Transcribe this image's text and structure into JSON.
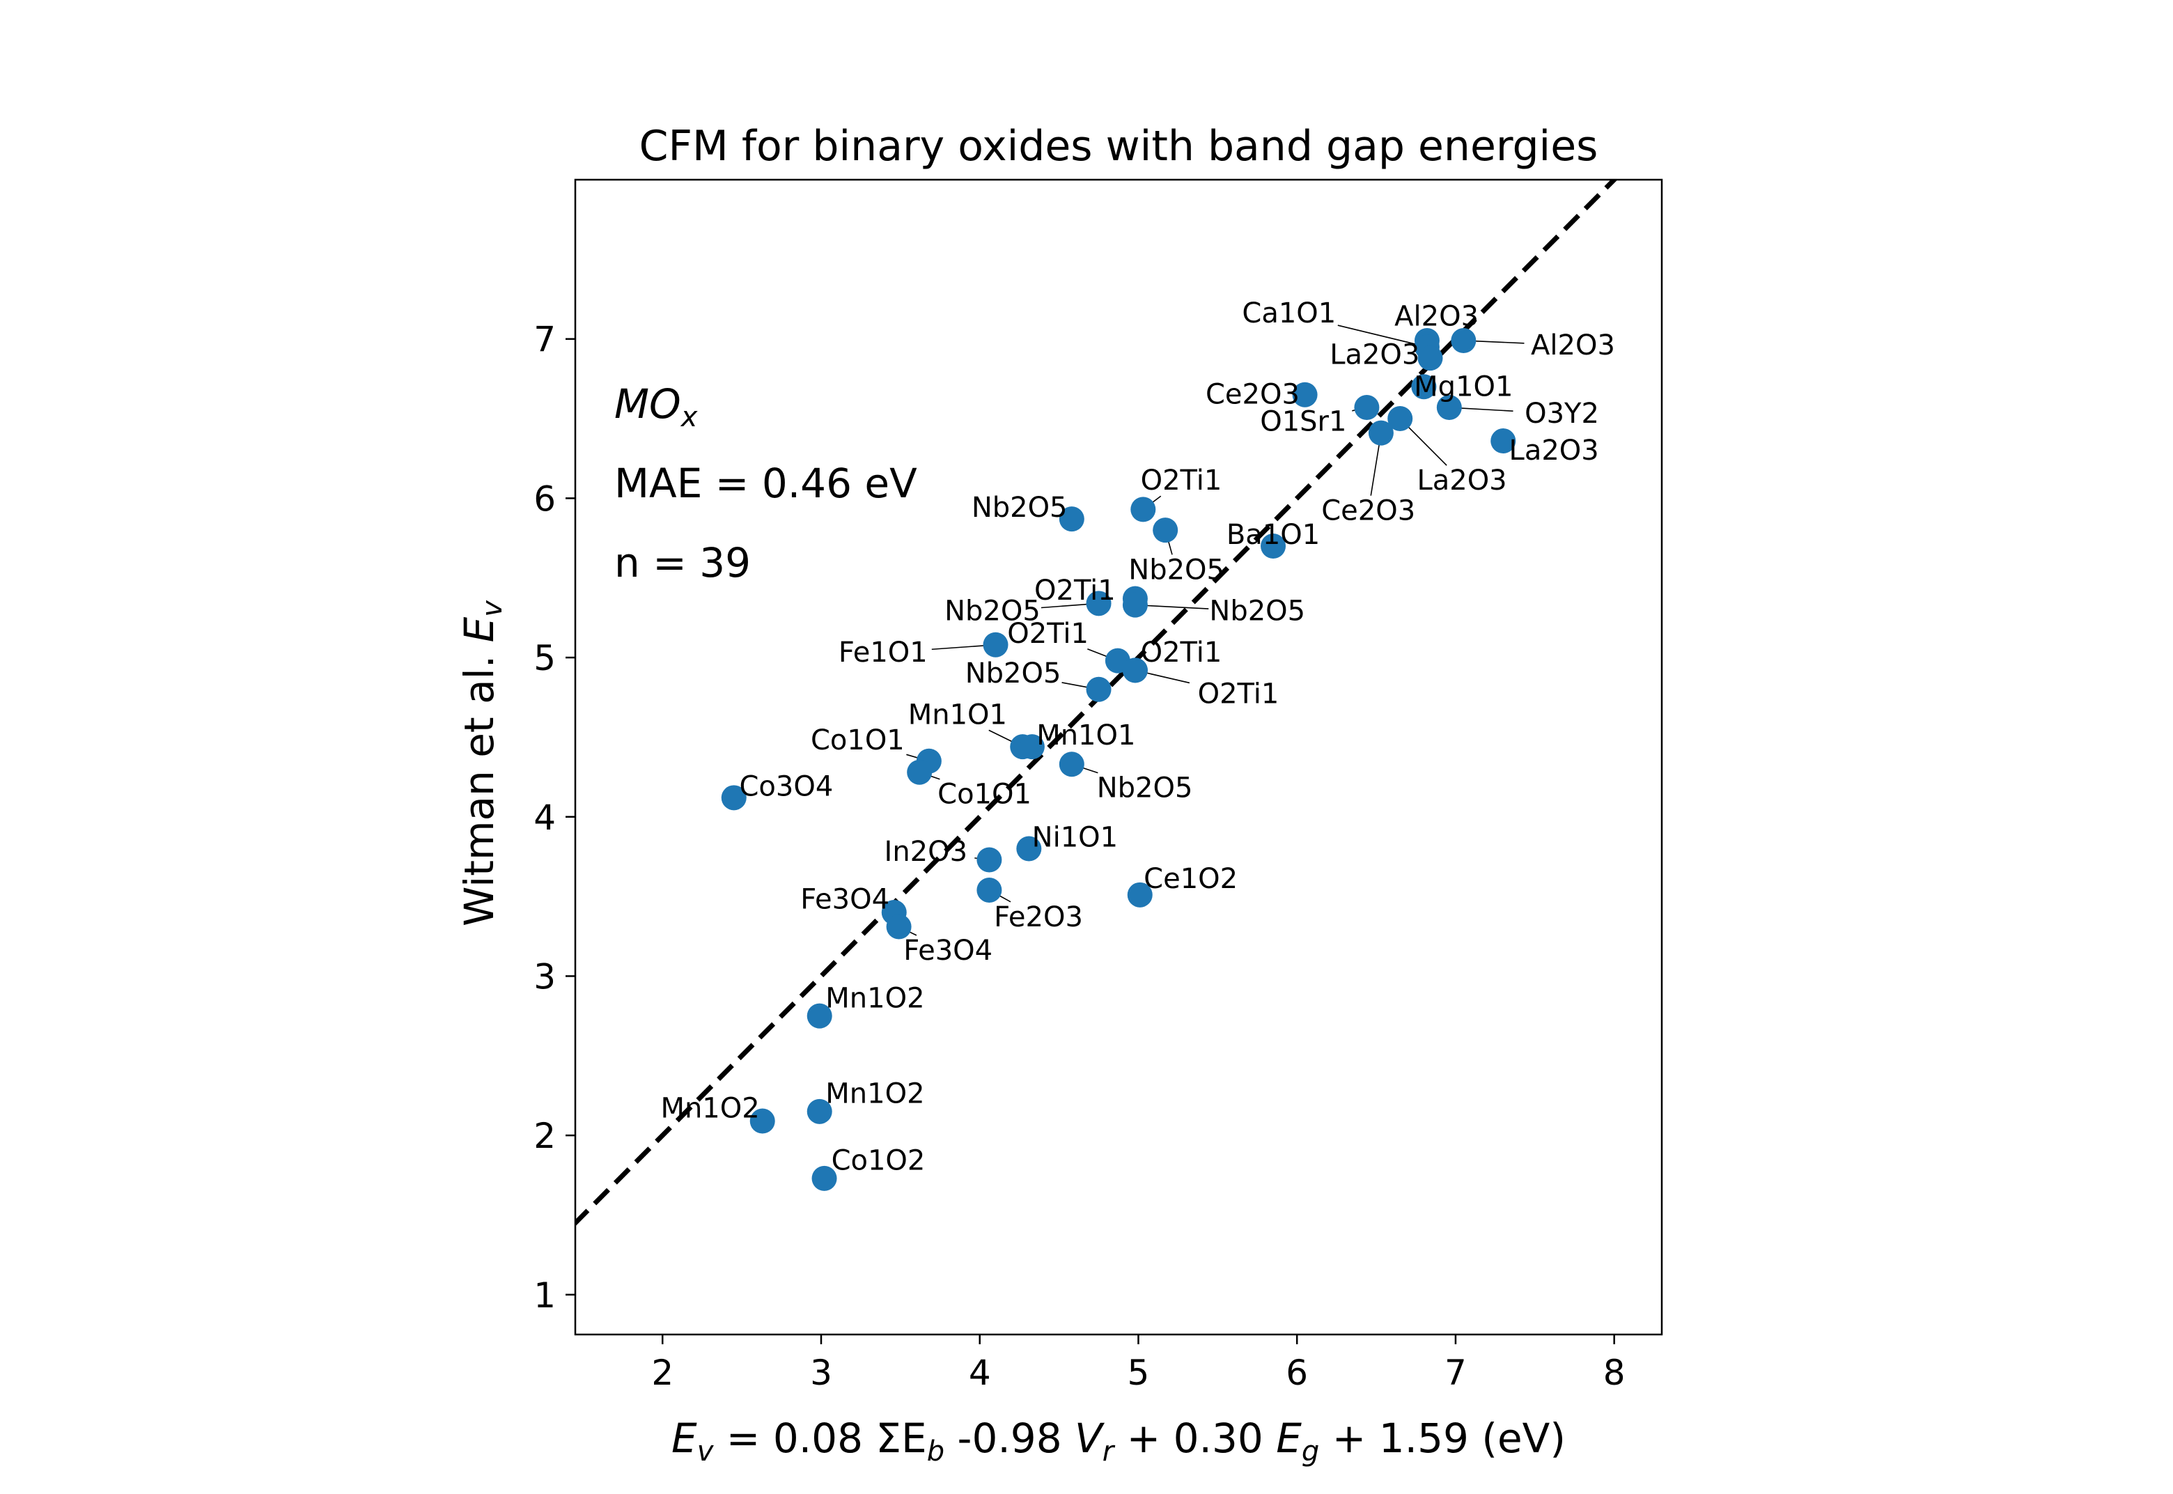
{
  "chart_data": {
    "type": "scatter",
    "title": "CFM for binary oxides with band gap energies",
    "xlabel": {
      "parts": [
        {
          "t": "E",
          "i": true
        },
        {
          "t": "v",
          "sub": true
        },
        {
          "t": " = 0.08 ΣE"
        },
        {
          "t": "b",
          "sub": true
        },
        {
          "t": " -0.98 "
        },
        {
          "t": "V",
          "i": true
        },
        {
          "t": "r",
          "sub": true
        },
        {
          "t": " + 0.30 "
        },
        {
          "t": "E",
          "i": true
        },
        {
          "t": "g",
          "sub": true
        },
        {
          "t": " + 1.59 (eV)"
        }
      ]
    },
    "ylabel": {
      "parts": [
        {
          "t": "Witman et al. "
        },
        {
          "t": "E",
          "i": true
        },
        {
          "t": "v",
          "sub": true
        }
      ]
    },
    "xlim": [
      1.45,
      8.3
    ],
    "ylim": [
      0.75,
      8.0
    ],
    "xticks": [
      "2",
      "3",
      "4",
      "5",
      "6",
      "7",
      "8"
    ],
    "yticks": [
      "1",
      "2",
      "3",
      "4",
      "5",
      "6",
      "7"
    ],
    "annotations": {
      "formula_main": "MO",
      "formula_sub": "x",
      "mae": "MAE = 0.46 eV",
      "n": "n = 39"
    },
    "parity_line": {
      "style": "dashed",
      "color": "#000000"
    },
    "point_color": "#1f77b4",
    "points": [
      {
        "label": "Al2O3",
        "x": 6.82,
        "y": 6.99,
        "lx": 6.88,
        "ly": 7.14
      },
      {
        "label": "Al2O3",
        "x": 7.05,
        "y": 6.99,
        "lx": 7.74,
        "ly": 6.96
      },
      {
        "label": "Ca1O1",
        "x": 6.82,
        "y": 6.95,
        "lx": 5.95,
        "ly": 7.16
      },
      {
        "label": "La2O3",
        "x": 6.84,
        "y": 6.88,
        "lx": 6.49,
        "ly": 6.9
      },
      {
        "label": "Mg1O1",
        "x": 6.8,
        "y": 6.7,
        "lx": 7.05,
        "ly": 6.7
      },
      {
        "label": "Ce2O3",
        "x": 6.05,
        "y": 6.65,
        "lx": 5.72,
        "ly": 6.65
      },
      {
        "label": "O1Sr1",
        "x": 6.44,
        "y": 6.57,
        "lx": 6.04,
        "ly": 6.48
      },
      {
        "label": "O3Y2",
        "x": 6.96,
        "y": 6.57,
        "lx": 7.67,
        "ly": 6.53
      },
      {
        "label": "La2O3",
        "x": 6.65,
        "y": 6.5,
        "lx": 7.04,
        "ly": 6.11
      },
      {
        "label": "Ce2O3",
        "x": 6.53,
        "y": 6.41,
        "lx": 6.45,
        "ly": 5.92
      },
      {
        "label": "La2O3",
        "x": 7.3,
        "y": 6.36,
        "lx": 7.62,
        "ly": 6.3
      },
      {
        "label": "O2Ti1",
        "x": 5.03,
        "y": 5.93,
        "lx": 5.27,
        "ly": 6.11
      },
      {
        "label": "Nb2O5",
        "x": 4.58,
        "y": 5.87,
        "lx": 4.25,
        "ly": 5.94
      },
      {
        "label": "Nb2O5",
        "x": 5.17,
        "y": 5.8,
        "lx": 5.24,
        "ly": 5.55
      },
      {
        "label": "Ba1O1",
        "x": 5.85,
        "y": 5.7,
        "lx": 5.85,
        "ly": 5.77
      },
      {
        "label": "O2Ti1",
        "x": 4.98,
        "y": 5.37,
        "lx": 4.6,
        "ly": 5.42
      },
      {
        "label": "Nb2O5",
        "x": 4.75,
        "y": 5.34,
        "lx": 4.08,
        "ly": 5.29
      },
      {
        "label": "Nb2O5",
        "x": 4.98,
        "y": 5.33,
        "lx": 5.75,
        "ly": 5.29
      },
      {
        "label": "O2Ti1",
        "x": 4.87,
        "y": 4.98,
        "lx": 4.43,
        "ly": 5.15
      },
      {
        "label": "O2Ti1",
        "x": 4.98,
        "y": 4.92,
        "lx": 5.27,
        "ly": 5.03
      },
      {
        "label": "O2Ti1",
        "x": 4.98,
        "y": 4.92,
        "lx": 5.63,
        "ly": 4.77
      },
      {
        "label": "Nb2O5",
        "x": 4.75,
        "y": 4.8,
        "lx": 4.21,
        "ly": 4.9
      },
      {
        "label": "Fe1O1",
        "x": 4.1,
        "y": 5.08,
        "lx": 3.39,
        "ly": 5.03
      },
      {
        "label": "Mn1O1",
        "x": 4.27,
        "y": 4.44,
        "lx": 3.86,
        "ly": 4.64
      },
      {
        "label": "Mn1O1",
        "x": 4.33,
        "y": 4.44,
        "lx": 4.67,
        "ly": 4.51
      },
      {
        "label": "Co1O1",
        "x": 3.68,
        "y": 4.35,
        "lx": 3.23,
        "ly": 4.48
      },
      {
        "label": "Co1O1",
        "x": 3.62,
        "y": 4.28,
        "lx": 4.03,
        "ly": 4.14
      },
      {
        "label": "Nb2O5",
        "x": 4.58,
        "y": 4.33,
        "lx": 5.04,
        "ly": 4.18
      },
      {
        "label": "Co3O4",
        "x": 2.45,
        "y": 4.12,
        "lx": 2.78,
        "ly": 4.19
      },
      {
        "label": "In2O3",
        "x": 4.06,
        "y": 3.73,
        "lx": 3.66,
        "ly": 3.78
      },
      {
        "label": "Ni1O1",
        "x": 4.31,
        "y": 3.8,
        "lx": 4.6,
        "ly": 3.87
      },
      {
        "label": "Fe3O4",
        "x": 3.46,
        "y": 3.4,
        "lx": 3.15,
        "ly": 3.48
      },
      {
        "label": "Fe2O3",
        "x": 4.06,
        "y": 3.54,
        "lx": 4.37,
        "ly": 3.37
      },
      {
        "label": "Ce1O2",
        "x": 5.01,
        "y": 3.51,
        "lx": 5.33,
        "ly": 3.61
      },
      {
        "label": "Fe3O4",
        "x": 3.49,
        "y": 3.31,
        "lx": 3.8,
        "ly": 3.16
      },
      {
        "label": "Mn1O2",
        "x": 2.99,
        "y": 2.75,
        "lx": 3.34,
        "ly": 2.86
      },
      {
        "label": "Mn1O2",
        "x": 2.99,
        "y": 2.15,
        "lx": 3.34,
        "ly": 2.26
      },
      {
        "label": "Mn1O2",
        "x": 2.63,
        "y": 2.09,
        "lx": 2.3,
        "ly": 2.17
      },
      {
        "label": "Co1O2",
        "x": 3.02,
        "y": 1.73,
        "lx": 3.36,
        "ly": 1.84
      }
    ]
  }
}
